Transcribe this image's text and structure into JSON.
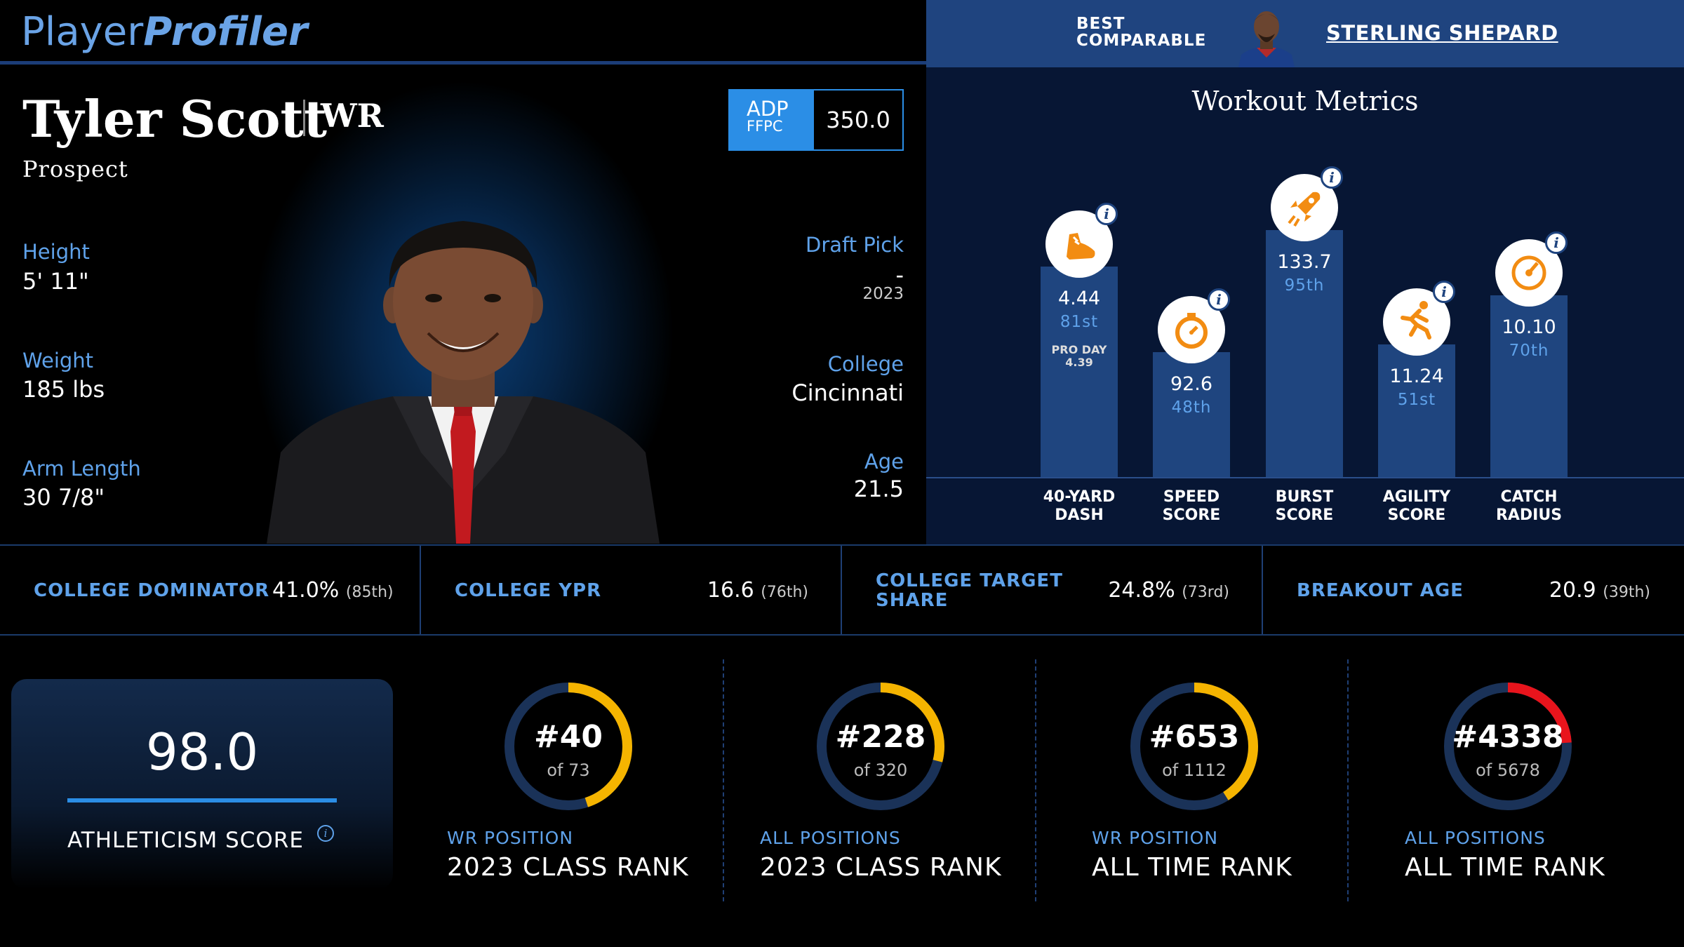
{
  "header": {
    "logo_part1": "Player",
    "logo_part2": "Profiler",
    "best_comparable_label": "BEST COMPARABLE",
    "best_comparable_name": "STERLING SHEPARD"
  },
  "player": {
    "name": "Tyler Scott",
    "position": "WR",
    "status": "Prospect",
    "adp": {
      "label": "ADP",
      "sub": "FFPC",
      "value": "350.0"
    },
    "height": {
      "label": "Height",
      "value": "5' 11\""
    },
    "weight": {
      "label": "Weight",
      "value": "185 lbs"
    },
    "arm_length": {
      "label": "Arm Length",
      "value": "30 7/8\""
    },
    "draft_pick": {
      "label": "Draft Pick",
      "value": "-",
      "year": "2023"
    },
    "college": {
      "label": "College",
      "value": "Cincinnati"
    },
    "age": {
      "label": "Age",
      "value": "21.5"
    }
  },
  "workout": {
    "title": "Workout Metrics",
    "pro_day_label": "PRO DAY",
    "pro_day_value": "4.39",
    "metrics": [
      {
        "name_line1": "40-YARD",
        "name_line2": "DASH",
        "value": "4.44",
        "percentile": "81st",
        "percentile_num": 81,
        "icon": "running-shoe-icon"
      },
      {
        "name_line1": "SPEED",
        "name_line2": "SCORE",
        "value": "92.6",
        "percentile": "48th",
        "percentile_num": 48,
        "icon": "stopwatch-icon"
      },
      {
        "name_line1": "BURST",
        "name_line2": "SCORE",
        "value": "133.7",
        "percentile": "95th",
        "percentile_num": 95,
        "icon": "rocket-icon"
      },
      {
        "name_line1": "AGILITY",
        "name_line2": "SCORE",
        "value": "11.24",
        "percentile": "51st",
        "percentile_num": 51,
        "icon": "running-person-icon"
      },
      {
        "name_line1": "CATCH",
        "name_line2": "RADIUS",
        "value": "10.10",
        "percentile": "70th",
        "percentile_num": 70,
        "icon": "target-icon"
      }
    ]
  },
  "college_stats": [
    {
      "label": "COLLEGE DOMINATOR",
      "value": "41.0%",
      "percentile": "(85th)"
    },
    {
      "label": "COLLEGE YPR",
      "value": "16.6",
      "percentile": "(76th)"
    },
    {
      "label_line1": "COLLEGE TARGET",
      "label_line2": "SHARE",
      "value": "24.8%",
      "percentile": "(73rd)"
    },
    {
      "label": "BREAKOUT AGE",
      "value": "20.9",
      "percentile": "(39th)"
    }
  ],
  "athleticism": {
    "score": "98.0",
    "label": "ATHLETICISM SCORE"
  },
  "ranks": [
    {
      "rank": "#40",
      "of": "of 73",
      "sub": "WR POSITION",
      "main": "2023 CLASS RANK",
      "fraction": 0.45,
      "color": "#f5b400"
    },
    {
      "rank": "#228",
      "of": "of 320",
      "sub": "ALL POSITIONS",
      "main": "2023 CLASS RANK",
      "fraction": 0.29,
      "color": "#f5b400"
    },
    {
      "rank": "#653",
      "of": "of 1112",
      "sub": "WR POSITION",
      "main": "ALL TIME RANK",
      "fraction": 0.41,
      "color": "#f5b400"
    },
    {
      "rank": "#4338",
      "of": "of 5678",
      "sub": "ALL POSITIONS",
      "main": "ALL TIME RANK",
      "fraction": 0.24,
      "color": "#e8141c"
    }
  ],
  "colors": {
    "accent_blue": "#5fa2ea",
    "header_blue": "#1f447f",
    "ring_track": "#1a3258",
    "ring_yellow": "#f5b400",
    "ring_red": "#e8141c"
  }
}
